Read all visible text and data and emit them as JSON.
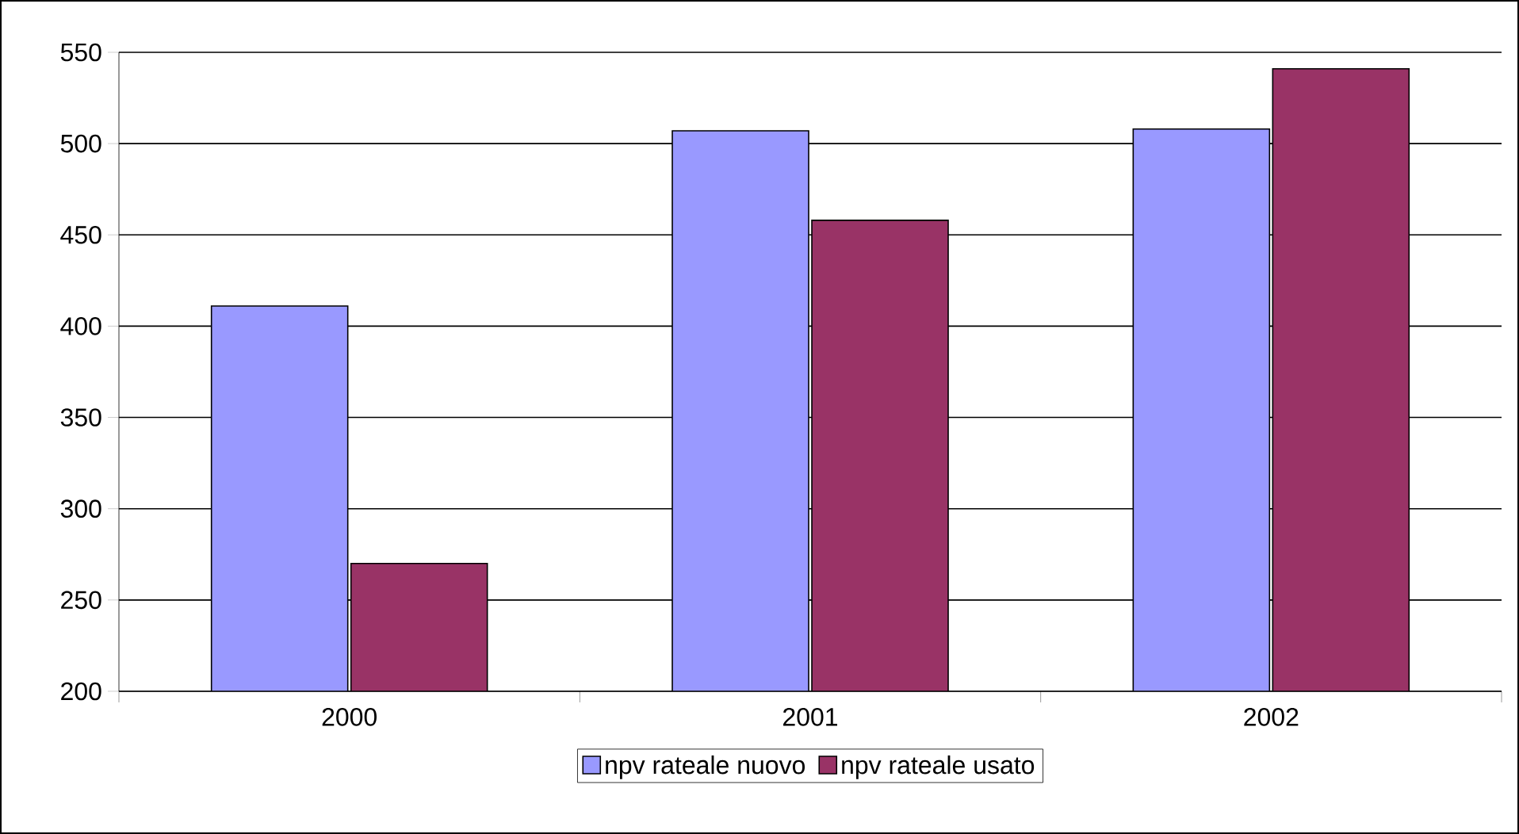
{
  "chart_data": {
    "type": "bar",
    "categories": [
      "2000",
      "2001",
      "2002"
    ],
    "series": [
      {
        "name": "npv rateale nuovo",
        "color": "#9999ff",
        "values": [
          411,
          507,
          508
        ]
      },
      {
        "name": "npv rateale usato",
        "color": "#993366",
        "values": [
          270,
          458,
          541
        ]
      }
    ],
    "ylim": [
      200,
      550
    ],
    "yticks": [
      200,
      250,
      300,
      350,
      400,
      450,
      500,
      550
    ],
    "grid": "y",
    "legend": "bottom"
  }
}
